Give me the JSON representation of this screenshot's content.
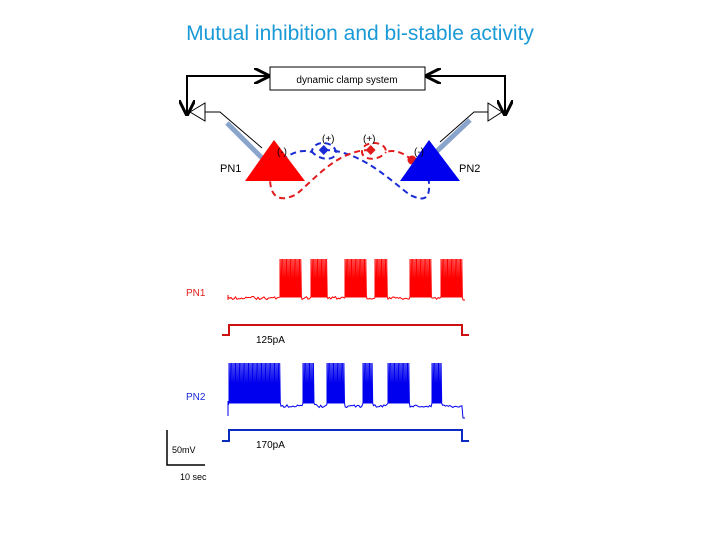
{
  "title": "Mutual inhibition and bi-stable activity",
  "diagram": {
    "box_label": "dynamic clamp system",
    "neuron1": "PN1",
    "neuron2": "PN2",
    "synapse_inhib": "(-)",
    "synapse_excit": "(+)"
  },
  "traces": {
    "pn1_label": "PN1",
    "pn2_label": "PN2",
    "pn1_current": "125pA",
    "pn2_current": "170pA",
    "scale_voltage": "50mV",
    "scale_time": "10 sec"
  },
  "colors": {
    "title": "#1a9ad6",
    "pn1": "#ff0000",
    "pn2": "#0000ee",
    "pn1_stim": "#cc1111",
    "pn2_stim": "#0a2bbf"
  }
}
